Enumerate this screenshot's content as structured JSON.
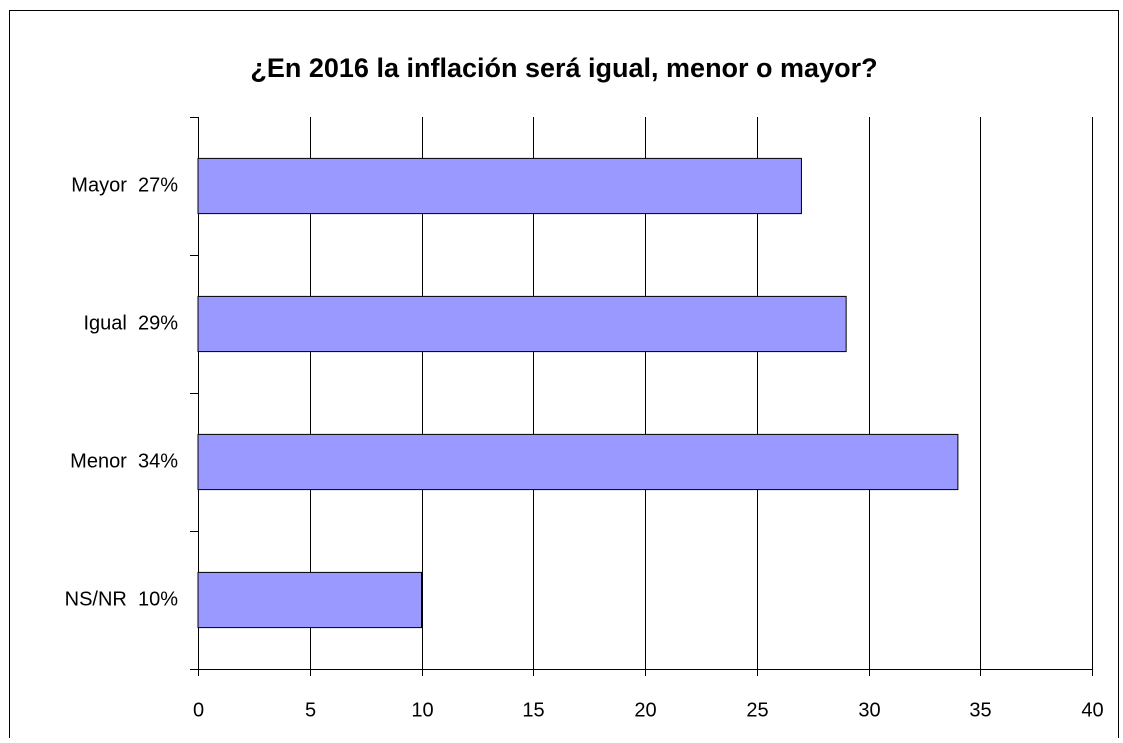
{
  "chart_data": {
    "type": "bar",
    "orientation": "horizontal",
    "title": "¿En 2016 la inflación será igual, menor o mayor?",
    "categories": [
      "Mayor  27%",
      "Igual  29%",
      "Menor  34%",
      "NS/NR  10%"
    ],
    "values": [
      27,
      29,
      34,
      10
    ],
    "color": "#9999ff",
    "xlim": [
      0,
      40
    ],
    "xticks": [
      0,
      5,
      10,
      15,
      20,
      25,
      30,
      35,
      40
    ],
    "grid": true
  }
}
